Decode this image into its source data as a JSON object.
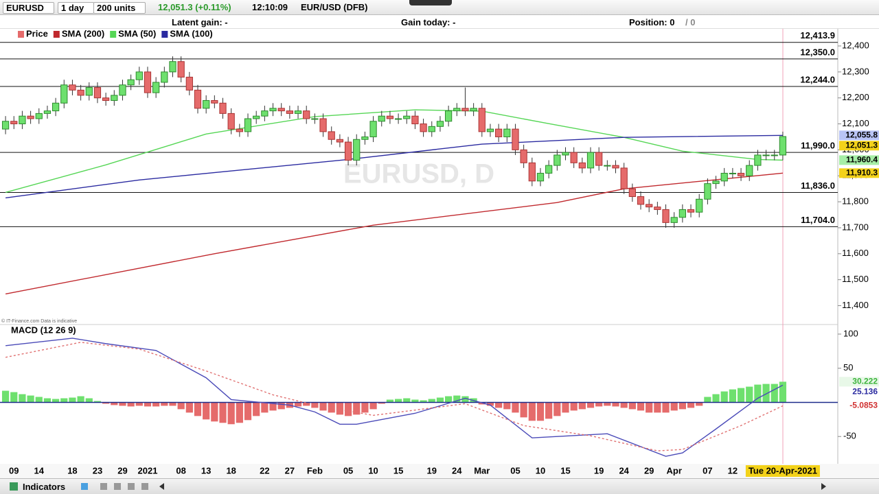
{
  "toolbar": {
    "symbol": "EURUSD",
    "period": "1 day",
    "size": "200 units",
    "quote": "12,051.3 (+0.11%)",
    "time": "12:10:09",
    "instrument": "EUR/USD (DFB)"
  },
  "status": {
    "latent_gain": "Latent gain: -",
    "gain_today": "Gain today: -",
    "position": "Position: 0",
    "position_total": "/ 0"
  },
  "watermark": "EURUSD, D",
  "copyright": "© IT-Finance.com  Data is indicative",
  "footer": {
    "indicators": "Indicators"
  },
  "chart_data": [
    {
      "type": "candlestick",
      "price_name": "Price",
      "up_color": "#6ee06e",
      "down_color": "#e56b6b",
      "close_label": "12,051.3",
      "close_label_bg": "#f3d21a",
      "open": [
        12080,
        12110,
        12100,
        12130,
        12120,
        12140,
        12150,
        12180,
        12250,
        12230,
        12210,
        12240,
        12200,
        12190,
        12210,
        12250,
        12270,
        12300,
        12220,
        12260,
        12300,
        12340,
        12280,
        12230,
        12160,
        12190,
        12180,
        12140,
        12080,
        12070,
        12120,
        12130,
        12150,
        12160,
        12150,
        12140,
        12150,
        12120,
        12120,
        12070,
        12040,
        12030,
        11960,
        12040,
        12050,
        12110,
        12130,
        12120,
        12120,
        12130,
        12100,
        12070,
        12090,
        12110,
        12150,
        12160,
        12150,
        12160,
        12070,
        12080,
        12050,
        12080,
        12000,
        11950,
        11880,
        11910,
        11940,
        11980,
        11990,
        11950,
        11930,
        11990,
        11940,
        11940,
        11930,
        11850,
        11820,
        11790,
        11780,
        11770,
        11720,
        11740,
        11770,
        11760,
        11810,
        11870,
        11880,
        11910,
        11910,
        11900,
        11940,
        11980,
        11980,
        11980
      ],
      "high": [
        12130,
        12130,
        12150,
        12150,
        12160,
        12170,
        12200,
        12270,
        12270,
        12250,
        12260,
        12260,
        12220,
        12230,
        12270,
        12290,
        12320,
        12320,
        12280,
        12320,
        12360,
        12360,
        12300,
        12250,
        12210,
        12210,
        12200,
        12160,
        12100,
        12140,
        12150,
        12170,
        12180,
        12180,
        12170,
        12170,
        12170,
        12140,
        12140,
        12090,
        12060,
        12050,
        12060,
        12070,
        12130,
        12150,
        12150,
        12140,
        12150,
        12150,
        12120,
        12110,
        12130,
        12170,
        12180,
        12240,
        12180,
        12180,
        12100,
        12100,
        12100,
        12100,
        12020,
        11970,
        11930,
        11960,
        12000,
        12010,
        12010,
        11970,
        12010,
        12010,
        11960,
        11960,
        11950,
        11870,
        11840,
        11810,
        11800,
        11790,
        11760,
        11790,
        11790,
        11830,
        11890,
        11900,
        11930,
        11930,
        11930,
        11960,
        12000,
        12000,
        12000,
        12070
      ],
      "low": [
        12060,
        12080,
        12080,
        12100,
        12100,
        12120,
        12130,
        12160,
        12210,
        12190,
        12190,
        12180,
        12170,
        12170,
        12190,
        12230,
        12250,
        12200,
        12200,
        12240,
        12280,
        12260,
        12210,
        12140,
        12140,
        12160,
        12120,
        12060,
        12050,
        12050,
        12100,
        12110,
        12130,
        12130,
        12120,
        12120,
        12100,
        12100,
        12050,
        12020,
        12010,
        11940,
        11940,
        12020,
        12030,
        12090,
        12100,
        12100,
        12100,
        12080,
        12050,
        12050,
        12070,
        12090,
        12130,
        12130,
        12130,
        12050,
        12050,
        12030,
        12030,
        11980,
        11930,
        11860,
        11860,
        11890,
        11920,
        11960,
        11930,
        11910,
        11910,
        11920,
        11920,
        11910,
        11830,
        11800,
        11770,
        11760,
        11750,
        11700,
        11700,
        11720,
        11740,
        11740,
        11790,
        11850,
        11860,
        11890,
        11880,
        11880,
        11920,
        11960,
        11960,
        11960
      ],
      "close": [
        12110,
        12100,
        12130,
        12120,
        12140,
        12150,
        12180,
        12250,
        12230,
        12210,
        12240,
        12200,
        12190,
        12210,
        12250,
        12270,
        12300,
        12220,
        12260,
        12300,
        12340,
        12280,
        12230,
        12160,
        12190,
        12180,
        12140,
        12080,
        12070,
        12120,
        12130,
        12150,
        12160,
        12150,
        12140,
        12150,
        12120,
        12120,
        12070,
        12040,
        12030,
        11960,
        12040,
        12050,
        12110,
        12130,
        12120,
        12120,
        12130,
        12100,
        12070,
        12090,
        12110,
        12150,
        12160,
        12150,
        12160,
        12070,
        12080,
        12050,
        12080,
        12000,
        11950,
        11880,
        11910,
        11940,
        11980,
        11990,
        11950,
        11930,
        11990,
        11940,
        11940,
        11930,
        11850,
        11820,
        11790,
        11780,
        11770,
        11720,
        11740,
        11770,
        11760,
        11810,
        11870,
        11880,
        11910,
        11910,
        11900,
        11940,
        11980,
        11980,
        11980,
        12051.3
      ],
      "series": [
        {
          "name": "SMA (200)",
          "color": "#c0282d",
          "x": [
            0,
            25,
            44,
            66,
            74,
            93
          ],
          "values": [
            11445,
            11600,
            11710,
            11797,
            11850,
            11910.3
          ],
          "last_label": "11,910.3",
          "label_bg": "#f3d21a"
        },
        {
          "name": "SMA (50)",
          "color": "#55d655",
          "x": [
            0,
            12,
            24,
            37,
            49,
            57,
            65,
            74,
            81,
            90,
            93
          ],
          "values": [
            11836,
            11942,
            12061,
            12128,
            12154,
            12149,
            12101,
            12048,
            11995,
            11963,
            11960.4
          ],
          "last_label": "11,960.4",
          "label_bg": "#a6eea6"
        },
        {
          "name": "SMA (100)",
          "color": "#2a2aa0",
          "x": [
            0,
            16,
            41,
            57,
            74,
            93
          ],
          "values": [
            11815,
            11884,
            11963,
            12022,
            12048,
            12055.8
          ],
          "last_label": "12,055.8",
          "label_bg": "#b9c4f5"
        }
      ],
      "levels": [
        {
          "value": 12413.9,
          "label": "12,413.9"
        },
        {
          "value": 12350,
          "label": "12,350.0"
        },
        {
          "value": 12244,
          "label": "12,244.0"
        },
        {
          "value": 11990,
          "label": "11,990.0"
        },
        {
          "value": 11836,
          "label": "11,836.0"
        },
        {
          "value": 11704,
          "label": "11,704.0"
        }
      ],
      "ylim": [
        11330,
        12466
      ],
      "yticks": [
        {
          "value": 12400,
          "label": "12,400"
        },
        {
          "value": 12300,
          "label": "12,300"
        },
        {
          "value": 12200,
          "label": "12,200"
        },
        {
          "value": 12100,
          "label": "12,100"
        },
        {
          "value": 12000,
          "label": "12,000"
        },
        {
          "value": 11900,
          "label": "11,900"
        },
        {
          "value": 11800,
          "label": "11,800"
        },
        {
          "value": 11700,
          "label": "11,700"
        },
        {
          "value": 11600,
          "label": "11,600"
        },
        {
          "value": 11500,
          "label": "11,500"
        },
        {
          "value": 11400,
          "label": "11,400"
        }
      ]
    },
    {
      "type": "macd",
      "title": "MACD (12 26 9)",
      "pos_color": "#6ee06e",
      "neg_color": "#e56b6b",
      "last_label": "30.222",
      "label_color": "#3cb43c",
      "categories": [
        null,
        "09",
        null,
        null,
        "14",
        null,
        null,
        null,
        "18",
        null,
        null,
        "23",
        null,
        null,
        "29",
        null,
        null,
        "2021",
        null,
        null,
        null,
        "08",
        null,
        null,
        "13",
        null,
        null,
        "18",
        null,
        null,
        null,
        "22",
        null,
        null,
        "27",
        null,
        null,
        "Feb",
        null,
        null,
        null,
        "05",
        null,
        null,
        "10",
        null,
        null,
        "15",
        null,
        null,
        null,
        "19",
        null,
        null,
        "24",
        null,
        null,
        "Mar",
        null,
        null,
        null,
        "05",
        null,
        null,
        "10",
        null,
        null,
        "15",
        null,
        null,
        null,
        "19",
        null,
        null,
        "24",
        null,
        null,
        "29",
        null,
        null,
        "Apr",
        null,
        null,
        null,
        "07",
        null,
        null,
        "12",
        null,
        null,
        null,
        null,
        null,
        "Tue 20-Apr-2021"
      ],
      "values": [
        17,
        15,
        12,
        10,
        8,
        6,
        5,
        6,
        7,
        9,
        6,
        2,
        -2,
        -4,
        -5,
        -6,
        -5,
        -6,
        -6,
        -5,
        -5,
        -10,
        -15,
        -20,
        -25,
        -28,
        -30,
        -32,
        -30,
        -26,
        -20,
        -15,
        -12,
        -10,
        -8,
        -6,
        -5,
        -8,
        -12,
        -15,
        -18,
        -20,
        -18,
        -15,
        -10,
        -2,
        4,
        5,
        6,
        4,
        3,
        5,
        7,
        9,
        10,
        9,
        6,
        -3,
        -5,
        -8,
        -10,
        -15,
        -22,
        -27,
        -27,
        -24,
        -20,
        -15,
        -12,
        -10,
        -8,
        -6,
        -5,
        -6,
        -8,
        -10,
        -12,
        -15,
        -15,
        -15,
        -12,
        -10,
        -8,
        -5,
        8,
        12,
        16,
        19,
        21,
        23,
        26,
        27,
        27,
        30.222
      ],
      "series": [
        {
          "color": "#4a4ab8",
          "x": [
            0,
            8,
            12,
            18,
            24,
            27,
            34,
            37,
            40,
            42,
            49,
            55,
            58,
            63,
            72,
            79,
            81,
            85,
            90,
            93
          ],
          "values": [
            83,
            94,
            86,
            76,
            36,
            4,
            -4,
            -14,
            -32,
            -32,
            -16,
            6,
            -4,
            -52,
            -46,
            -79,
            -74,
            -39,
            6,
            25.136
          ],
          "last_label": "25.136",
          "label_color": "#2a2aa0"
        },
        {
          "color": "#e07070",
          "dash": true,
          "x": [
            0,
            9,
            16,
            24,
            32,
            37,
            44,
            55,
            62,
            70,
            78,
            81,
            88,
            93
          ],
          "values": [
            66,
            88,
            78,
            46,
            11,
            -4,
            -19,
            -2,
            -34,
            -49,
            -71,
            -69,
            -34,
            -5.0853
          ],
          "last_label": "-5.0853",
          "label_color": "#d03030"
        }
      ],
      "ylim": [
        -89,
        112
      ],
      "yticks": [
        100,
        50,
        -50
      ]
    }
  ]
}
